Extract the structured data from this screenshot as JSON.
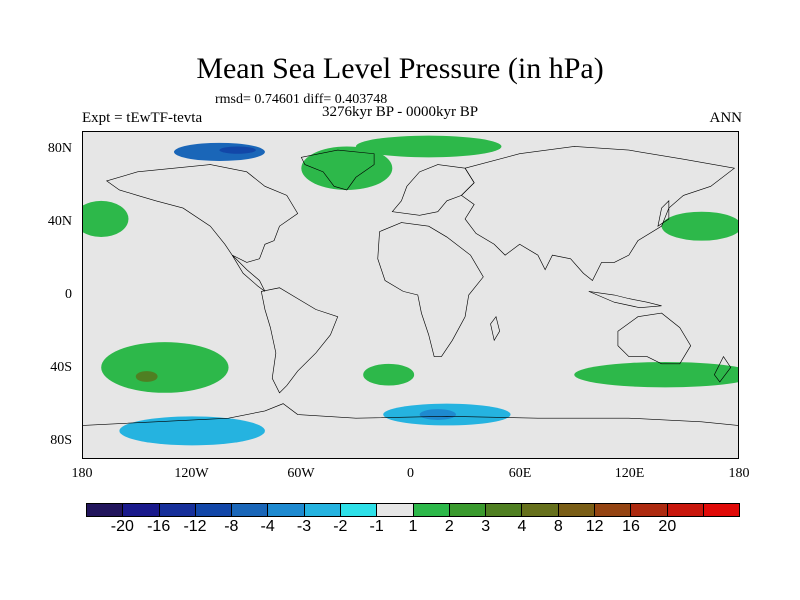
{
  "title": "Mean Sea Level Pressure (in hPa)",
  "stats": "rmsd= 0.74601 diff= 0.403748",
  "experiment": "Expt = tEwTF-tevta",
  "period": "3276kyr BP - 0000kyr BP",
  "season": "ANN",
  "lat_labels": [
    {
      "text": "80N",
      "lat": 80
    },
    {
      "text": "40N",
      "lat": 40
    },
    {
      "text": "0",
      "lat": 0
    },
    {
      "text": "40S",
      "lat": -40
    },
    {
      "text": "80S",
      "lat": -80
    }
  ],
  "lon_labels": [
    {
      "text": "180",
      "lon": -180
    },
    {
      "text": "120W",
      "lon": -120
    },
    {
      "text": "60W",
      "lon": -60
    },
    {
      "text": "0",
      "lon": 0
    },
    {
      "text": "60E",
      "lon": 60
    },
    {
      "text": "120E",
      "lon": 120
    },
    {
      "text": "180",
      "lon": 180
    }
  ],
  "colorbar": {
    "colors": [
      "#22155c",
      "#1a1a8c",
      "#162f9a",
      "#1247a8",
      "#1a66b8",
      "#1e8ad0",
      "#25b3e0",
      "#2ee0e8",
      "#e6e6e6",
      "#2db84a",
      "#3a9a2e",
      "#4f7f22",
      "#66701c",
      "#7a5e16",
      "#944412",
      "#ad2a10",
      "#c8160c",
      "#e00a08"
    ],
    "labels": [
      "-20",
      "-16",
      "-12",
      "-8",
      "-4",
      "-3",
      "-2",
      "-1",
      "1",
      "2",
      "3",
      "4",
      "8",
      "12",
      "16",
      "20"
    ]
  },
  "anomalies": [
    {
      "level": 2,
      "color": "#2db84a",
      "region": "North Atlantic / Greenland",
      "center": [
        -35,
        70
      ],
      "radius": [
        25,
        12
      ]
    },
    {
      "level": 2,
      "color": "#2db84a",
      "region": "Arctic",
      "center": [
        10,
        82
      ],
      "radius": [
        40,
        6
      ]
    },
    {
      "level": 2,
      "color": "#2db84a",
      "region": "North-East Pacific",
      "center": [
        -170,
        42
      ],
      "radius": [
        15,
        10
      ]
    },
    {
      "level": 2,
      "color": "#2db84a",
      "region": "North-West Pacific",
      "center": [
        160,
        38
      ],
      "radius": [
        22,
        8
      ]
    },
    {
      "level": 2,
      "color": "#2db84a",
      "region": "South Pacific",
      "center": [
        -135,
        -40
      ],
      "radius": [
        35,
        14
      ]
    },
    {
      "level": 4,
      "color": "#4f7f22",
      "region": "South Pacific core",
      "center": [
        -145,
        -45
      ],
      "radius": [
        6,
        3
      ]
    },
    {
      "level": 2,
      "color": "#2db84a",
      "region": "South Atlantic",
      "center": [
        -12,
        -44
      ],
      "radius": [
        14,
        6
      ]
    },
    {
      "level": 2,
      "color": "#2db84a",
      "region": "South Indian / Australia",
      "center": [
        140,
        -44
      ],
      "radius": [
        50,
        7
      ]
    },
    {
      "level": -2,
      "color": "#25b3e0",
      "region": "Southern Ocean",
      "center": [
        20,
        -66
      ],
      "radius": [
        35,
        6
      ]
    },
    {
      "level": -3,
      "color": "#1e8ad0",
      "region": "Southern Ocean core",
      "center": [
        15,
        -66
      ],
      "radius": [
        10,
        3
      ]
    },
    {
      "level": -2,
      "color": "#25b3e0",
      "region": "Antarctic Pacific sector",
      "center": [
        -120,
        -75
      ],
      "radius": [
        40,
        8
      ]
    },
    {
      "level": -4,
      "color": "#1a66b8",
      "region": "Canadian Arctic",
      "center": [
        -105,
        79
      ],
      "radius": [
        25,
        5
      ]
    },
    {
      "level": -8,
      "color": "#1247a8",
      "region": "Canadian Arctic core",
      "center": [
        -95,
        80
      ],
      "radius": [
        10,
        2
      ]
    }
  ]
}
